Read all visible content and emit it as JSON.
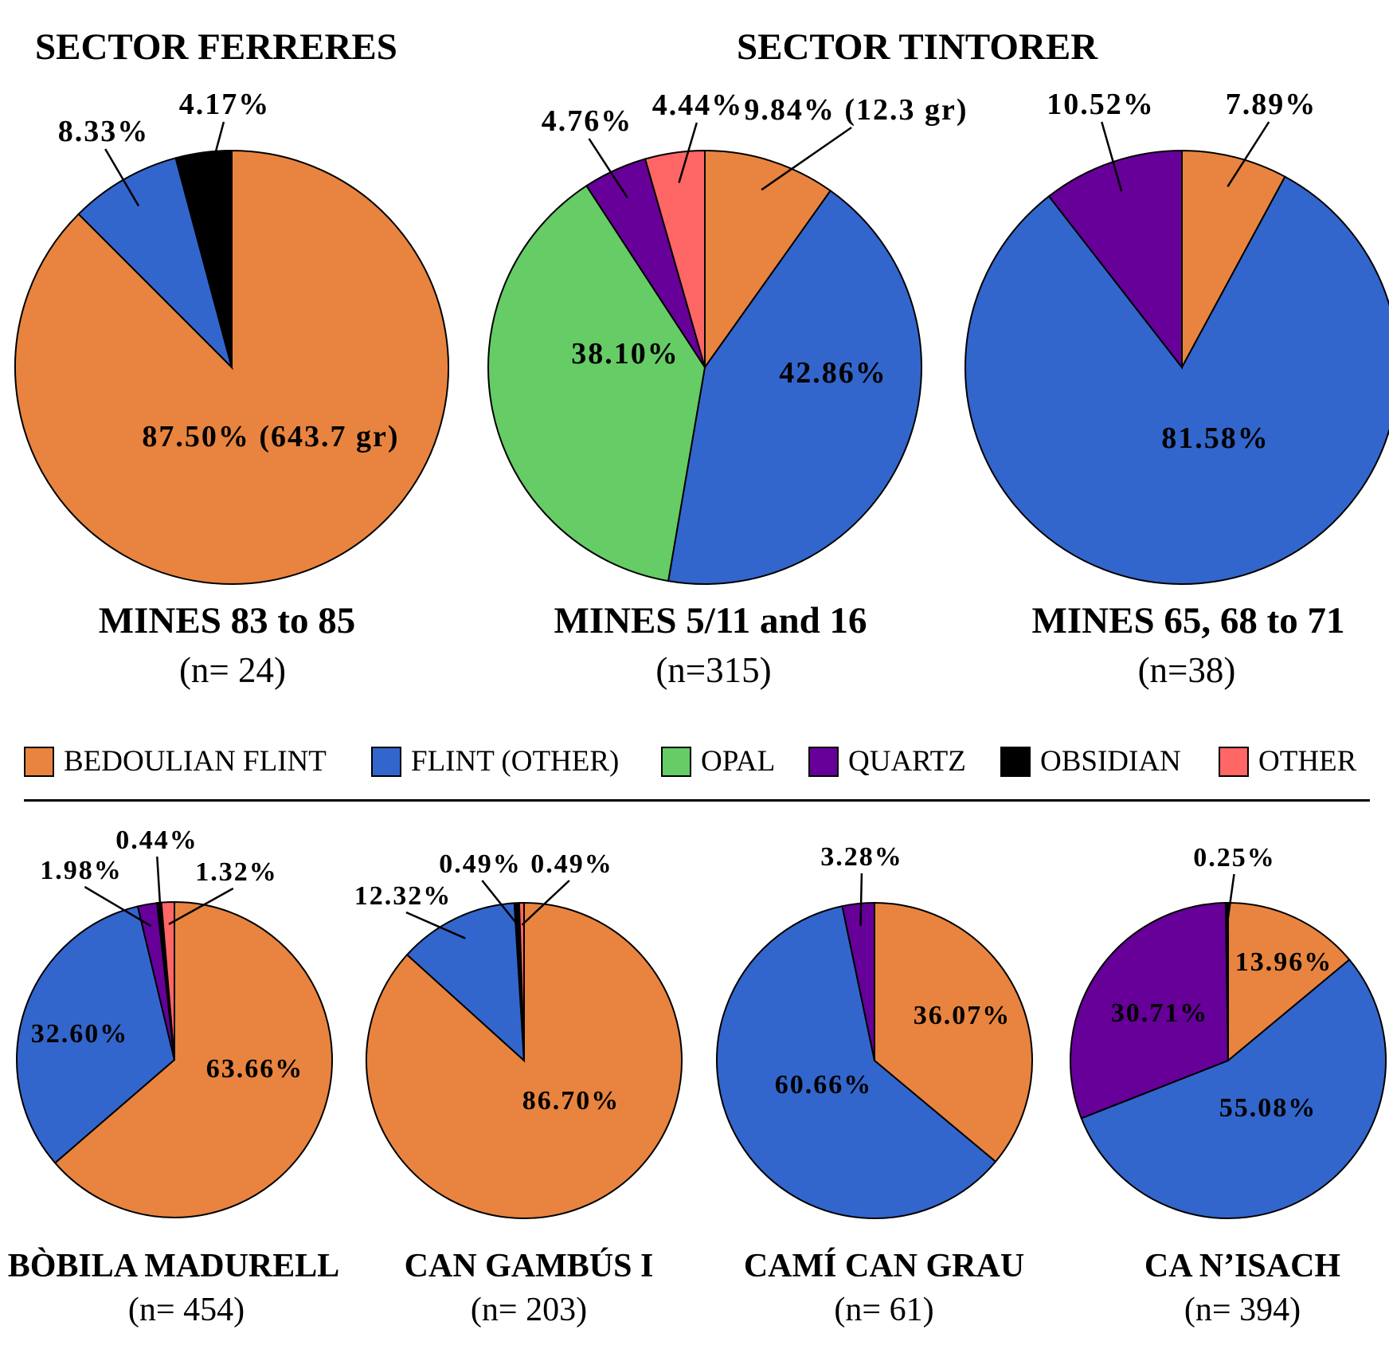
{
  "sectors": {
    "ferreres": "SECTOR FERRERES",
    "tintorer": "SECTOR TINTORER"
  },
  "legend": [
    {
      "label": "BEDOULIAN FLINT",
      "color": "#E8843F"
    },
    {
      "label": "FLINT (OTHER)",
      "color": "#3366CC"
    },
    {
      "label": "OPAL",
      "color": "#66CC66"
    },
    {
      "label": "QUARTZ",
      "color": "#660099"
    },
    {
      "label": "OBSIDIAN",
      "color": "#000000"
    },
    {
      "label": "OTHER",
      "color": "#FF6666"
    }
  ],
  "chart_data": [
    {
      "type": "pie",
      "title": "MINES 83 to 85",
      "subtitle": "(n= 24)",
      "slices": [
        {
          "category": "BEDOULIAN FLINT",
          "value": 87.5,
          "label": "87.50% (643.7 gr)"
        },
        {
          "category": "FLINT (OTHER)",
          "value": 8.33,
          "label": "8.33%"
        },
        {
          "category": "OBSIDIAN",
          "value": 4.17,
          "label": "4.17%"
        }
      ]
    },
    {
      "type": "pie",
      "title": "MINES 5/11 and 16",
      "subtitle": "(n=315)",
      "slices": [
        {
          "category": "BEDOULIAN FLINT",
          "value": 9.84,
          "label": "9.84% (12.3 gr)"
        },
        {
          "category": "FLINT (OTHER)",
          "value": 42.86,
          "label": "42.86%"
        },
        {
          "category": "OPAL",
          "value": 38.1,
          "label": "38.10%"
        },
        {
          "category": "QUARTZ",
          "value": 4.76,
          "label": "4.76%"
        },
        {
          "category": "OTHER",
          "value": 4.44,
          "label": "4.44%"
        }
      ]
    },
    {
      "type": "pie",
      "title": "MINES 65, 68 to 71",
      "subtitle": "(n=38)",
      "slices": [
        {
          "category": "BEDOULIAN FLINT",
          "value": 7.89,
          "label": "7.89%"
        },
        {
          "category": "FLINT (OTHER)",
          "value": 81.58,
          "label": "81.58%"
        },
        {
          "category": "QUARTZ",
          "value": 10.52,
          "label": "10.52%"
        }
      ]
    },
    {
      "type": "pie",
      "title": "BÒBILA MADURELL",
      "subtitle": "(n= 454)",
      "slices": [
        {
          "category": "BEDOULIAN FLINT",
          "value": 63.66,
          "label": "63.66%"
        },
        {
          "category": "FLINT (OTHER)",
          "value": 32.6,
          "label": "32.60%"
        },
        {
          "category": "QUARTZ",
          "value": 1.98,
          "label": "1.98%"
        },
        {
          "category": "OBSIDIAN",
          "value": 0.44,
          "label": "0.44%"
        },
        {
          "category": "OTHER",
          "value": 1.32,
          "label": "1.32%"
        }
      ]
    },
    {
      "type": "pie",
      "title": "CAN GAMBÚS I",
      "subtitle": "(n= 203)",
      "slices": [
        {
          "category": "BEDOULIAN FLINT",
          "value": 86.7,
          "label": "86.70%"
        },
        {
          "category": "FLINT (OTHER)",
          "value": 12.32,
          "label": "12.32%"
        },
        {
          "category": "OBSIDIAN",
          "value": 0.49,
          "label": "0.49%"
        },
        {
          "category": "OTHER",
          "value": 0.49,
          "label": "0.49%"
        }
      ]
    },
    {
      "type": "pie",
      "title": "CAMÍ CAN GRAU",
      "subtitle": "(n= 61)",
      "slices": [
        {
          "category": "BEDOULIAN FLINT",
          "value": 36.07,
          "label": "36.07%"
        },
        {
          "category": "FLINT (OTHER)",
          "value": 60.66,
          "label": "60.66%"
        },
        {
          "category": "QUARTZ",
          "value": 3.28,
          "label": "3.28%"
        }
      ]
    },
    {
      "type": "pie",
      "title": "CA N’ISACH",
      "subtitle": "(n= 394)",
      "slices": [
        {
          "category": "BEDOULIAN FLINT",
          "value": 13.96,
          "label": "13.96%"
        },
        {
          "category": "FLINT (OTHER)",
          "value": 55.08,
          "label": "55.08%"
        },
        {
          "category": "QUARTZ",
          "value": 30.71,
          "label": "30.71%"
        },
        {
          "category": "OBSIDIAN",
          "value": 0.25,
          "label": "0.25%"
        }
      ]
    }
  ]
}
